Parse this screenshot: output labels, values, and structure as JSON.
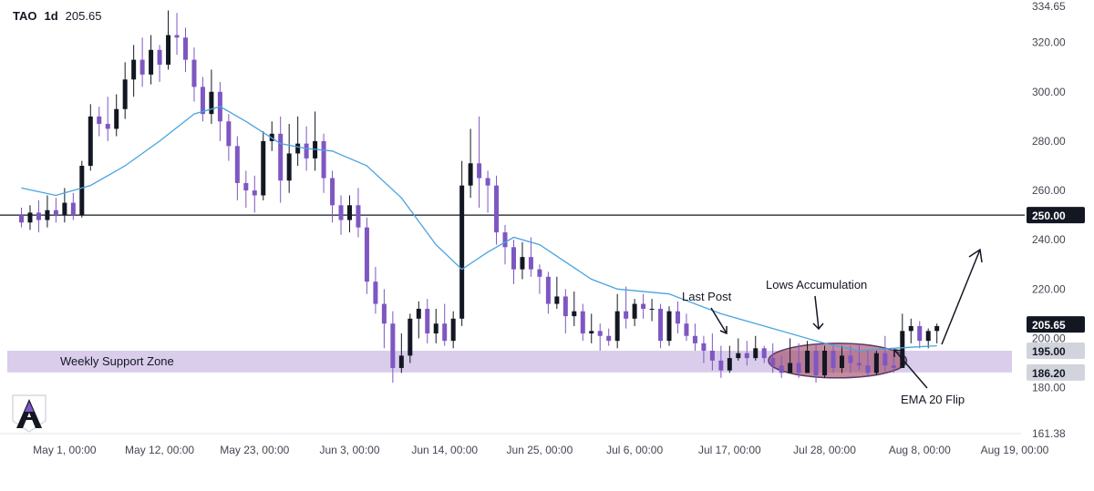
{
  "header": {
    "symbol": "TAO",
    "timeframe": "1d",
    "last_price": "205.65"
  },
  "chart_data": {
    "type": "candlestick",
    "y_axis": {
      "ticks": [
        334.65,
        320,
        300,
        280,
        260,
        240,
        220,
        200,
        180,
        161.38
      ],
      "range": [
        161.38,
        334.65
      ]
    },
    "x_axis": {
      "range": [
        "2024-04-26",
        "2024-08-23"
      ],
      "ticks": [
        {
          "date": "2024-05-01",
          "label": "May 1, 00:00"
        },
        {
          "date": "2024-05-12",
          "label": "May 12, 00:00"
        },
        {
          "date": "2024-05-23",
          "label": "May 23, 00:00"
        },
        {
          "date": "2024-06-03",
          "label": "Jun 3, 00:00"
        },
        {
          "date": "2024-06-14",
          "label": "Jun 14, 00:00"
        },
        {
          "date": "2024-06-25",
          "label": "Jun 25, 00:00"
        },
        {
          "date": "2024-07-06",
          "label": "Jul 6, 00:00"
        },
        {
          "date": "2024-07-17",
          "label": "Jul 17, 00:00"
        },
        {
          "date": "2024-07-28",
          "label": "Jul 28, 00:00"
        },
        {
          "date": "2024-08-08",
          "label": "Aug 8, 00:00"
        },
        {
          "date": "2024-08-19",
          "label": "Aug 19, 00:00"
        }
      ]
    },
    "first_candle_date": "2024-04-26",
    "candles": [
      [
        250,
        247,
        253,
        245
      ],
      [
        247,
        251,
        254,
        244
      ],
      [
        251,
        248,
        256,
        243
      ],
      [
        248,
        252,
        258,
        245
      ],
      [
        252,
        250,
        257,
        247
      ],
      [
        250,
        255,
        261,
        247
      ],
      [
        255,
        250,
        259,
        248
      ],
      [
        250,
        270,
        272,
        249
      ],
      [
        270,
        290,
        295,
        268
      ],
      [
        290,
        287,
        294,
        282
      ],
      [
        287,
        285,
        298,
        280
      ],
      [
        285,
        293,
        299,
        282
      ],
      [
        293,
        305,
        312,
        289
      ],
      [
        305,
        313,
        319,
        298
      ],
      [
        313,
        307,
        322,
        302
      ],
      [
        307,
        317,
        323,
        303
      ],
      [
        317,
        311,
        319,
        304
      ],
      [
        311,
        323,
        333,
        309
      ],
      [
        323,
        322,
        332,
        315
      ],
      [
        322,
        313,
        326,
        308
      ],
      [
        313,
        302,
        318,
        296
      ],
      [
        302,
        291,
        306,
        288
      ],
      [
        291,
        300,
        309,
        287
      ],
      [
        300,
        288,
        304,
        280
      ],
      [
        288,
        278,
        291,
        272
      ],
      [
        278,
        263,
        282,
        256
      ],
      [
        263,
        260,
        268,
        253
      ],
      [
        260,
        258,
        266,
        251
      ],
      [
        258,
        280,
        284,
        256
      ],
      [
        280,
        283,
        288,
        276
      ],
      [
        283,
        264,
        290,
        255
      ],
      [
        264,
        275,
        287,
        259
      ],
      [
        275,
        279,
        290,
        270
      ],
      [
        279,
        273,
        286,
        268
      ],
      [
        273,
        280,
        292,
        268
      ],
      [
        280,
        265,
        283,
        259
      ],
      [
        265,
        254,
        268,
        247
      ],
      [
        254,
        248,
        258,
        242
      ],
      [
        248,
        254,
        258,
        243
      ],
      [
        254,
        245,
        261,
        241
      ],
      [
        245,
        223,
        249,
        218
      ],
      [
        223,
        214,
        229,
        210
      ],
      [
        214,
        206,
        220,
        196
      ],
      [
        206,
        188,
        211,
        182
      ],
      [
        188,
        193,
        202,
        186
      ],
      [
        193,
        208,
        210,
        190
      ],
      [
        208,
        212,
        215,
        200
      ],
      [
        212,
        202,
        216,
        198
      ],
      [
        202,
        206,
        212,
        198
      ],
      [
        206,
        199,
        214,
        197
      ],
      [
        199,
        208,
        211,
        196
      ],
      [
        208,
        262,
        272,
        205
      ],
      [
        262,
        271,
        285,
        257
      ],
      [
        271,
        265,
        290,
        253
      ],
      [
        265,
        262,
        268,
        251
      ],
      [
        262,
        243,
        266,
        238
      ],
      [
        243,
        237,
        246,
        230
      ],
      [
        237,
        228,
        240,
        222
      ],
      [
        228,
        233,
        239,
        224
      ],
      [
        233,
        228,
        241,
        225
      ],
      [
        228,
        225,
        230,
        218
      ],
      [
        225,
        214,
        227,
        210
      ],
      [
        214,
        217,
        225,
        212
      ],
      [
        217,
        209,
        220,
        202
      ],
      [
        209,
        211,
        219,
        205
      ],
      [
        211,
        202,
        214,
        199
      ],
      [
        202,
        203,
        210,
        198
      ],
      [
        203,
        201,
        206,
        195
      ],
      [
        201,
        199,
        204,
        197
      ],
      [
        199,
        211,
        218,
        196
      ],
      [
        211,
        208,
        221,
        204
      ],
      [
        208,
        214,
        216,
        205
      ],
      [
        214,
        212,
        218,
        208
      ],
      [
        212,
        212,
        216,
        207
      ],
      [
        212,
        199,
        214,
        196
      ],
      [
        199,
        211,
        213,
        197
      ],
      [
        211,
        206,
        215,
        202
      ],
      [
        206,
        201,
        210,
        199
      ],
      [
        201,
        198,
        206,
        195
      ],
      [
        198,
        195,
        201,
        190
      ],
      [
        195,
        191,
        202,
        187
      ],
      [
        191,
        187,
        197,
        184
      ],
      [
        187,
        192,
        197,
        186
      ],
      [
        192,
        194,
        200,
        191
      ],
      [
        194,
        192,
        199,
        189
      ],
      [
        192,
        196,
        201,
        191
      ],
      [
        196,
        192,
        197,
        190
      ],
      [
        192,
        189,
        198,
        186
      ],
      [
        189,
        186,
        193,
        184
      ],
      [
        186,
        190,
        200,
        186
      ],
      [
        190,
        186,
        198,
        184
      ],
      [
        186,
        195,
        199,
        186
      ],
      [
        195,
        185,
        198,
        182
      ],
      [
        185,
        195,
        197,
        184
      ],
      [
        195,
        188,
        197,
        186
      ],
      [
        188,
        193,
        197,
        186
      ],
      [
        193,
        190,
        197,
        186
      ],
      [
        190,
        189,
        198,
        187
      ],
      [
        189,
        186,
        195,
        185
      ],
      [
        186,
        194,
        195,
        185
      ],
      [
        194,
        189,
        201,
        186
      ],
      [
        189,
        188,
        196,
        186
      ],
      [
        188,
        203,
        210,
        192
      ],
      [
        203,
        205,
        208,
        198
      ],
      [
        205,
        199,
        207,
        196
      ],
      [
        199,
        203,
        204,
        196
      ],
      [
        203,
        205,
        206,
        198
      ]
    ],
    "ema": {
      "name": "EMA 20",
      "points": [
        [
          0,
          261
        ],
        [
          4,
          258
        ],
        [
          8,
          262
        ],
        [
          12,
          270
        ],
        [
          16,
          280
        ],
        [
          20,
          291
        ],
        [
          23,
          294
        ],
        [
          26,
          288
        ],
        [
          30,
          279
        ],
        [
          33,
          277
        ],
        [
          36,
          276
        ],
        [
          40,
          270
        ],
        [
          44,
          257
        ],
        [
          48,
          238
        ],
        [
          51,
          228
        ],
        [
          54,
          235
        ],
        [
          57,
          241
        ],
        [
          60,
          238
        ],
        [
          63,
          231
        ],
        [
          66,
          224
        ],
        [
          69,
          220
        ],
        [
          75,
          218
        ],
        [
          81,
          210
        ],
        [
          87,
          204
        ],
        [
          93,
          198
        ],
        [
          97,
          195
        ],
        [
          101,
          196
        ],
        [
          106,
          197
        ]
      ]
    },
    "levels": [
      {
        "value": 250.0,
        "label": "250.00"
      }
    ],
    "zone": {
      "low": 186.2,
      "high": 195.0,
      "label": "Weekly Support Zone",
      "low_label": "186.20",
      "high_label": "195.00"
    },
    "price_label": "205.65",
    "annotations": [
      {
        "text": "Last Post"
      },
      {
        "text": "Lows Accumulation"
      },
      {
        "text": "EMA 20 Flip"
      }
    ],
    "colors": {
      "up": "#131722",
      "down": "#7e57c2",
      "ema": "#4aa3df",
      "zone": "#d9cdeb",
      "ellipse_fill": "#a4506c",
      "ellipse_stroke": "#5c3a69",
      "level": "#131722",
      "axis_text": "#434651"
    }
  }
}
